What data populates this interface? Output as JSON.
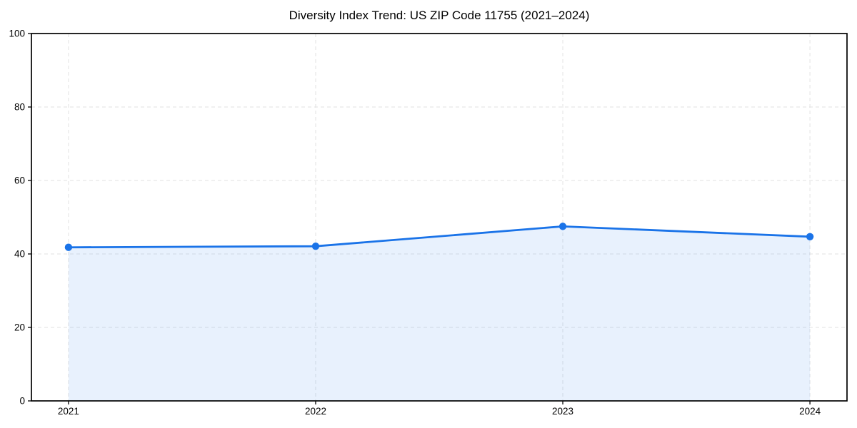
{
  "figure": {
    "title": "Diversity Index Trend: US ZIP Code 11755 (2021–2024)"
  },
  "chart_data": {
    "type": "area",
    "title": "Diversity Index Trend: US ZIP Code 11755 (2021–2024)",
    "categories": [
      "2021",
      "2022",
      "2023",
      "2024"
    ],
    "x": [
      2021,
      2022,
      2023,
      2024
    ],
    "values": [
      41.8,
      42.1,
      47.5,
      44.7
    ],
    "series_name": "Diversity Index",
    "xlabel": "",
    "ylabel": "",
    "ylim": [
      0,
      100
    ],
    "yticks": [
      0,
      20,
      40,
      60,
      80,
      100
    ],
    "grid": true,
    "grid_style": "dashed",
    "legend": "none",
    "fill_to_zero": true,
    "colors": {
      "line": "#1a73e8",
      "marker": "#1a73e8",
      "fill": "rgba(26,115,232,0.10)",
      "grid": "#e2e2e2",
      "axis": "#000000",
      "tick_label": "#000000",
      "background": "#ffffff"
    }
  }
}
